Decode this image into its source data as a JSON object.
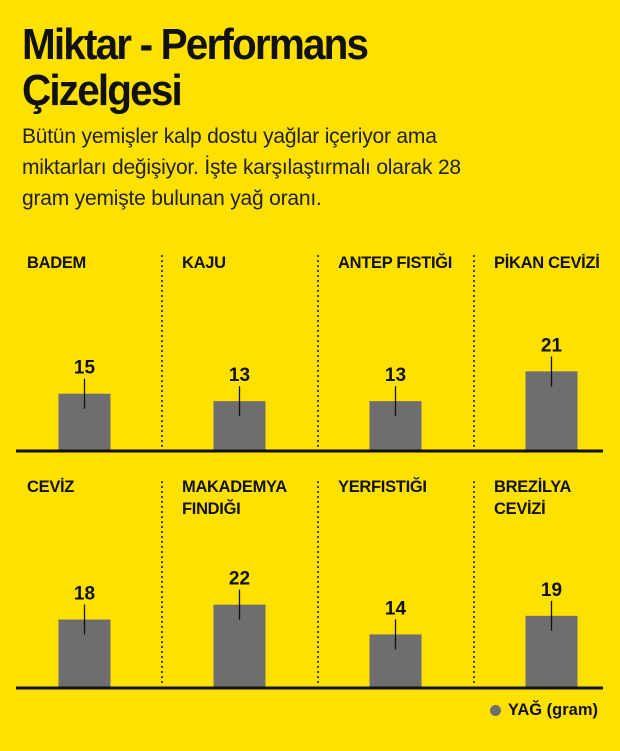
{
  "title_line1": "Miktar - Performans",
  "title_line2": "Çizelgesi",
  "subtitle_line1": "Bütün yemişler kalp dostu yağlar içeriyor ama",
  "subtitle_line2": "miktarları değişiyor. İşte karşılaştırmalı olarak 28",
  "subtitle_line3": "gram yemişte bulunan yağ oranı.",
  "legend": {
    "label": "YAĞ (gram)"
  },
  "colors": {
    "background": "#FFE100",
    "bar": "#6E6E70",
    "text": "#111111"
  },
  "chart_data": {
    "type": "bar",
    "layout": "small-multiples",
    "series": [
      {
        "name": "YAĞ (gram)",
        "color": "#6E6E70"
      }
    ],
    "ylim": [
      0,
      30
    ],
    "panels": [
      {
        "label_lines": [
          "BADEM"
        ],
        "value": 15
      },
      {
        "label_lines": [
          "KAJU"
        ],
        "value": 13
      },
      {
        "label_lines": [
          "ANTEP FISTIĞI"
        ],
        "value": 13
      },
      {
        "label_lines": [
          "PİKAN CEVİZİ"
        ],
        "value": 21
      },
      {
        "label_lines": [
          "CEVİZ"
        ],
        "value": 18
      },
      {
        "label_lines": [
          "MAKADEMYA",
          "FINDIĞI"
        ],
        "value": 22
      },
      {
        "label_lines": [
          "YERFISTIĞI"
        ],
        "value": 14
      },
      {
        "label_lines": [
          "BREZİLYA",
          "CEVİZİ"
        ],
        "value": 19
      }
    ]
  }
}
